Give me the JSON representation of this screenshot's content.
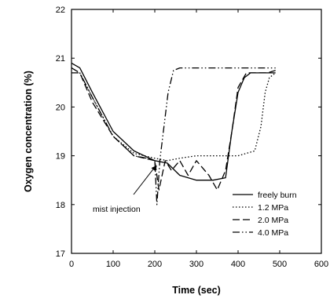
{
  "chart_data": {
    "type": "line",
    "title": "",
    "xlabel": "Time (sec)",
    "ylabel": "Oxygen concentration (%)",
    "xlim": [
      0,
      600
    ],
    "ylim": [
      17,
      22
    ],
    "xticks": [
      "0",
      "100",
      "200",
      "300",
      "400",
      "500",
      "600"
    ],
    "yticks": [
      "17",
      "18",
      "19",
      "20",
      "21",
      "22"
    ],
    "grid": false,
    "legend_position": "bottom-right",
    "annotation": {
      "text": "mist injection",
      "arrow_to": [
        205,
        18.9
      ]
    },
    "series": [
      {
        "name": "freely burn",
        "style": "solid",
        "points": [
          [
            0,
            20.9
          ],
          [
            20,
            20.8
          ],
          [
            50,
            20.3
          ],
          [
            100,
            19.5
          ],
          [
            150,
            19.1
          ],
          [
            200,
            18.9
          ],
          [
            230,
            18.85
          ],
          [
            260,
            18.6
          ],
          [
            300,
            18.5
          ],
          [
            340,
            18.5
          ],
          [
            370,
            18.55
          ],
          [
            385,
            19.5
          ],
          [
            400,
            20.3
          ],
          [
            415,
            20.6
          ],
          [
            430,
            20.7
          ],
          [
            460,
            20.7
          ],
          [
            490,
            20.7
          ]
        ]
      },
      {
        "name": "1.2 MPa",
        "style": "dotted",
        "points": [
          [
            0,
            20.8
          ],
          [
            20,
            20.7
          ],
          [
            50,
            20.2
          ],
          [
            100,
            19.4
          ],
          [
            150,
            19.05
          ],
          [
            200,
            18.95
          ],
          [
            230,
            18.9
          ],
          [
            260,
            18.95
          ],
          [
            300,
            19.0
          ],
          [
            350,
            19.0
          ],
          [
            400,
            19.0
          ],
          [
            440,
            19.1
          ],
          [
            455,
            19.6
          ],
          [
            465,
            20.3
          ],
          [
            475,
            20.6
          ],
          [
            490,
            20.7
          ]
        ]
      },
      {
        "name": "2.0 MPa",
        "style": "dashed",
        "points": [
          [
            0,
            20.7
          ],
          [
            20,
            20.7
          ],
          [
            50,
            20.1
          ],
          [
            100,
            19.4
          ],
          [
            150,
            19.0
          ],
          [
            200,
            18.9
          ],
          [
            210,
            18.3
          ],
          [
            225,
            18.9
          ],
          [
            240,
            18.7
          ],
          [
            260,
            18.9
          ],
          [
            280,
            18.6
          ],
          [
            300,
            18.9
          ],
          [
            330,
            18.6
          ],
          [
            350,
            18.3
          ],
          [
            370,
            18.7
          ],
          [
            385,
            19.5
          ],
          [
            400,
            20.4
          ],
          [
            420,
            20.7
          ],
          [
            470,
            20.7
          ],
          [
            490,
            20.75
          ]
        ]
      },
      {
        "name": "4.0 MPa",
        "style": "dash-dot-dot",
        "points": [
          [
            0,
            20.8
          ],
          [
            20,
            20.7
          ],
          [
            50,
            20.2
          ],
          [
            100,
            19.4
          ],
          [
            150,
            19.0
          ],
          [
            180,
            18.95
          ],
          [
            200,
            18.9
          ],
          [
            205,
            18.0
          ],
          [
            212,
            18.9
          ],
          [
            222,
            19.6
          ],
          [
            232,
            20.3
          ],
          [
            245,
            20.75
          ],
          [
            260,
            20.8
          ],
          [
            350,
            20.8
          ],
          [
            450,
            20.8
          ],
          [
            490,
            20.8
          ]
        ]
      }
    ],
    "colors": {
      "line": "#000000",
      "background": "#ffffff"
    }
  }
}
